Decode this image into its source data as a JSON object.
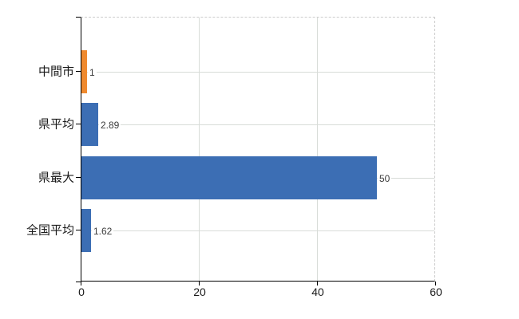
{
  "chart_data": {
    "type": "bar",
    "orientation": "horizontal",
    "title": "",
    "categories": [
      "中間市",
      "県平均",
      "県最大",
      "全国平均"
    ],
    "values": [
      1,
      2.89,
      50,
      1.62
    ],
    "value_labels": [
      "1",
      "2.89",
      "50",
      "1.62"
    ],
    "bar_colors": [
      "#ef8a2f",
      "#3c6eb4",
      "#3c6eb4",
      "#3c6eb4"
    ],
    "xlim": [
      0,
      60
    ],
    "x_ticks": [
      0,
      20,
      40,
      60
    ],
    "grid": true,
    "legend": false
  },
  "colors": {
    "background": "#ffffff",
    "axis": "#000000",
    "gridline": "#d8dcd8",
    "dashed_border": "#cbcbcb",
    "bar_blue": "#3c6eb4",
    "bar_orange": "#ef8a2f",
    "category_label_text": "#1a1a1a",
    "value_label_text": "#3c3c3c"
  }
}
